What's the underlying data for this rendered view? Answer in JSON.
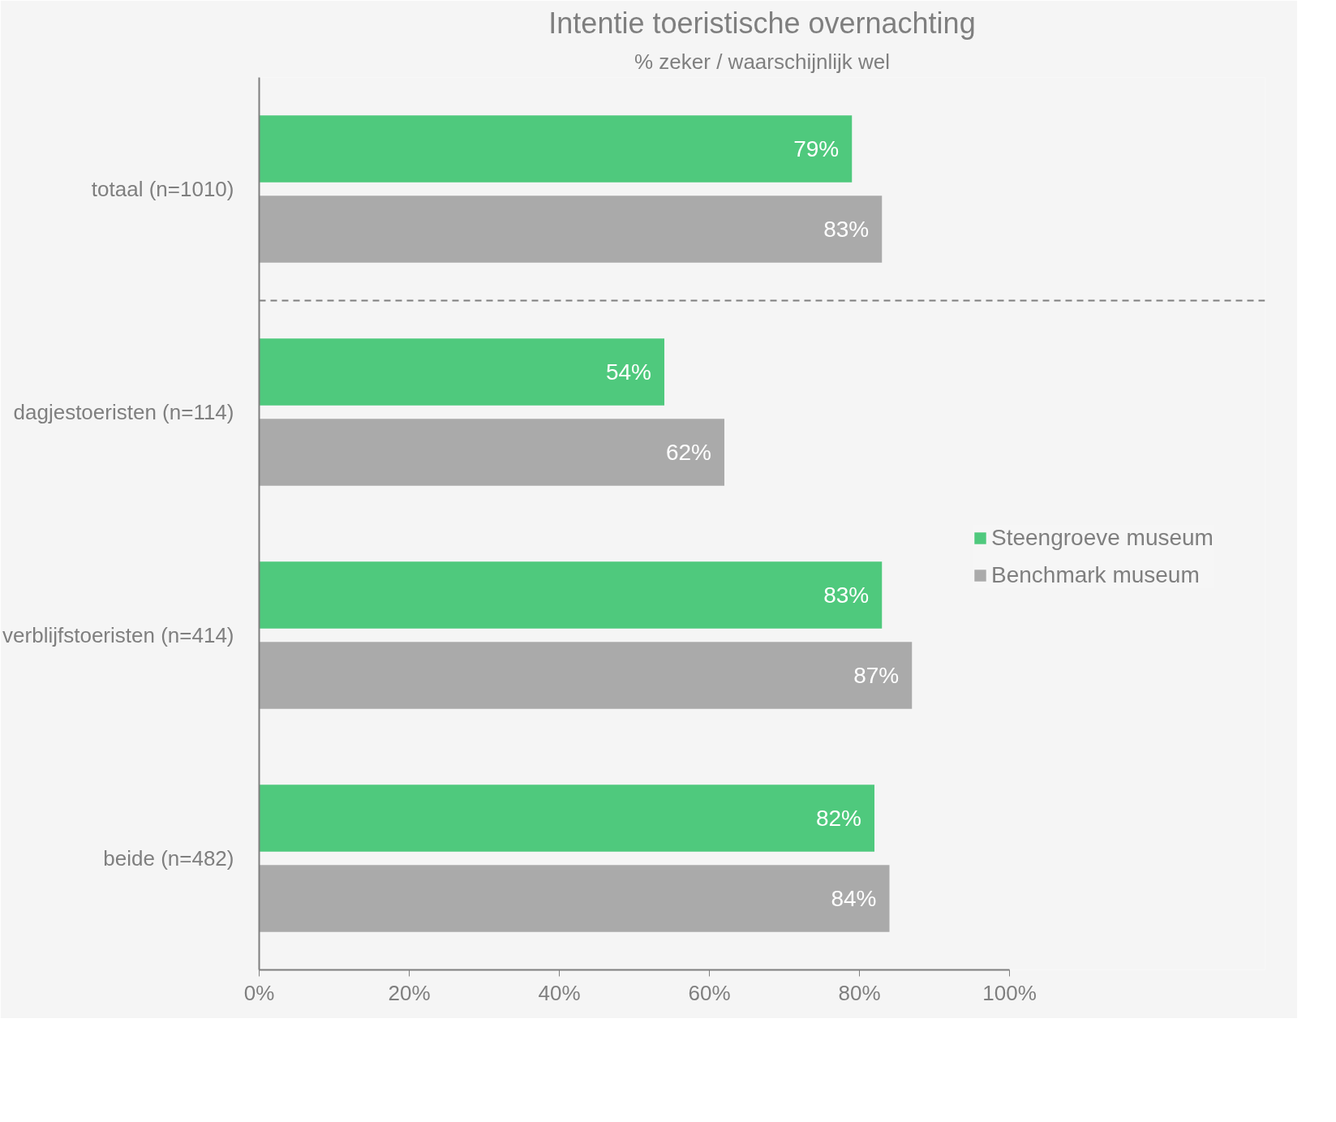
{
  "chart_data": {
    "type": "bar",
    "orientation": "horizontal",
    "title": "Intentie toeristische overnachting",
    "subtitle": "% zeker / waarschijnlijk wel",
    "categories": [
      "totaal (n=1010)",
      "dagjestoeristen (n=114)",
      "verblijfstoeristen (n=414)",
      "beide (n=482)"
    ],
    "series": [
      {
        "name": "Steengroeve museum",
        "color": "#4fc97d",
        "values": [
          79,
          54,
          83,
          82
        ],
        "value_labels": [
          "79%",
          "54%",
          "83%",
          "82%"
        ]
      },
      {
        "name": "Benchmark museum",
        "color": "#aaaaaa",
        "values": [
          83,
          62,
          87,
          84
        ],
        "value_labels": [
          "83%",
          "62%",
          "87%",
          "84%"
        ]
      }
    ],
    "xlim": [
      0,
      100
    ],
    "xticks": [
      {
        "value": 0,
        "label": "0%"
      },
      {
        "value": 20,
        "label": "20%"
      },
      {
        "value": 40,
        "label": "40%"
      },
      {
        "value": 60,
        "label": "60%"
      },
      {
        "value": 80,
        "label": "80%"
      },
      {
        "value": 100,
        "label": "100%"
      }
    ],
    "grid": false,
    "legend": "right"
  }
}
